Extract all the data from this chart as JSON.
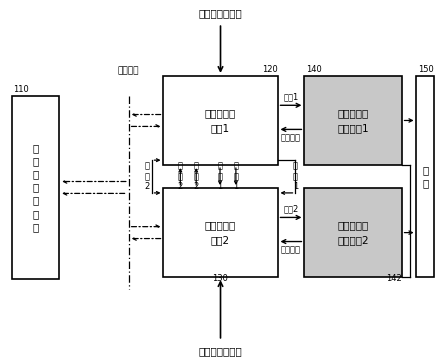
{
  "title_top": "驾驶舱操作信号",
  "title_bottom": "驾驶舱操作信号",
  "label_110": "110",
  "label_120": "120",
  "label_130": "130",
  "label_140": "140",
  "label_142": "142",
  "label_150": "150",
  "box_fcc_text": "飞\n行\n控\n制\n计\n算\n机",
  "box_ace1_text": "作动器控制\n电子1",
  "box_ace2_text": "作动器控制\n电子2",
  "box_acs1_text": "作动器伺服\n控制系统1",
  "box_acs2_text": "作动器伺服\n控制系统2",
  "box_surface_text": "舵\n面",
  "label_databus": "数字总线",
  "label_out1": "输出1",
  "label_sys_param1": "系统参数",
  "label_out2": "输出2",
  "label_sys_param2": "系统参数",
  "label_cmd1": "指\n令\n1",
  "label_cmd2": "指\n令\n2",
  "label_mode1": "模\n式\n1",
  "label_state1": "状\n态\n1",
  "label_mode2": "模\n式\n2",
  "label_state2": "状\n态\n2",
  "bg_color": "#ffffff",
  "gray_box_color": "#c8c8c8",
  "font_size": 7.5,
  "font_size_small": 6.5,
  "font_size_label": 6,
  "fig_width": 4.43,
  "fig_height": 3.63
}
